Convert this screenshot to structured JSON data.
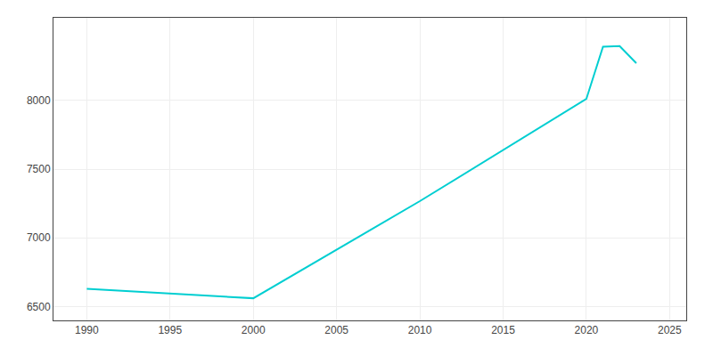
{
  "chart_data": {
    "type": "line",
    "x": [
      1990,
      2000,
      2010,
      2020,
      2021,
      2022,
      2023
    ],
    "values": [
      6629,
      6561,
      7267,
      8010,
      8390,
      8395,
      8270
    ],
    "color": "#00CED1",
    "xlim": [
      1988,
      2026
    ],
    "ylim": [
      6400,
      8600
    ],
    "xticks": [
      1990,
      1995,
      2000,
      2005,
      2010,
      2015,
      2020,
      2025
    ],
    "yticks": [
      6500,
      7000,
      7500,
      8000
    ],
    "grid": true
  }
}
